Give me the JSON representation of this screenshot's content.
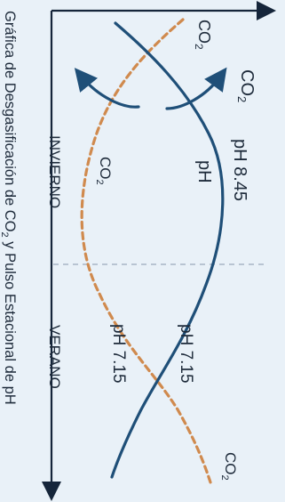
{
  "title": "Gráfica de Desgasificación de CO",
  "title_sub": "2",
  "title_rest": " y Pulso Estacional de pH",
  "seasons": {
    "left": "INVIERNO",
    "right": "VERANO"
  },
  "labels": {
    "co2_top": "CO",
    "co2_top_sub": "2",
    "co2_arrow": "CO",
    "co2_arrow_sub": "2",
    "co2_mid": "CO",
    "co2_mid_sub": "2",
    "co2_bottom": "CO",
    "co2_bottom_sub": "2",
    "ph_peak": "pH 8.45",
    "ph_mid": "pH",
    "ph_right": "pH 7.15",
    "ph_left": "pH 7.15"
  },
  "colors": {
    "ph_line": "#1f4f78",
    "co2_line": "#d08a4e",
    "axis": "#15253a",
    "divider": "#9aa9ba",
    "background": "#e9f1f8"
  }
}
